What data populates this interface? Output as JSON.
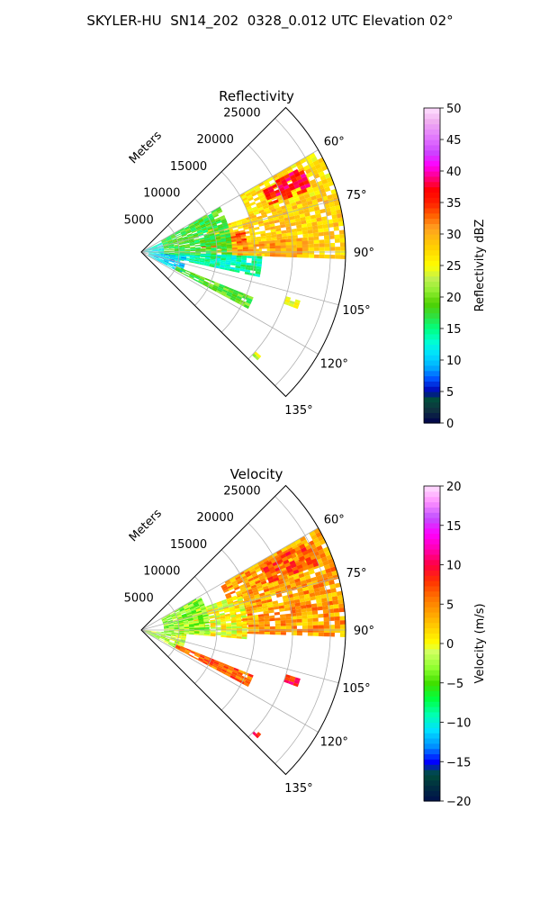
{
  "title": "SKYLER-HU  SN14_202  0328_0.012 UTC Elevation 02°",
  "chart_data": [
    {
      "type": "heatmap",
      "subtype": "radar-ppi-polar-sector",
      "title": "Reflectivity",
      "range_label": "Meters",
      "range_ticks": [
        "5000",
        "10000",
        "15000",
        "20000",
        "25000"
      ],
      "range_values": [
        5000,
        10000,
        15000,
        20000,
        25000
      ],
      "range_max": 27000,
      "azimuth_range": [
        45,
        135
      ],
      "azimuth_ticks": [
        "60°",
        "75°",
        "90°",
        "105°",
        "120°",
        "135°"
      ],
      "azimuth_values": [
        60,
        75,
        90,
        105,
        120,
        135
      ],
      "grid": true,
      "colorbar": {
        "label": "Reflectivity dBZ",
        "min": 0,
        "max": 50,
        "ticks": [
          "0",
          "5",
          "10",
          "15",
          "20",
          "25",
          "30",
          "35",
          "40",
          "45",
          "50"
        ],
        "tick_values": [
          0,
          5,
          10,
          15,
          20,
          25,
          30,
          35,
          40,
          45,
          50
        ]
      },
      "regions": [
        {
          "az": [
            72,
            92
          ],
          "r": [
            9000,
            27000
          ],
          "value": 28
        },
        {
          "az": [
            60,
            72
          ],
          "r": [
            15000,
            27000
          ],
          "value": 27
        },
        {
          "az": [
            62,
            70
          ],
          "r": [
            18000,
            24000
          ],
          "value": 37
        },
        {
          "az": [
            78,
            86
          ],
          "r": [
            8000,
            14000
          ],
          "value": 33
        },
        {
          "az": [
            85,
            92
          ],
          "r": [
            12000,
            22000
          ],
          "value": 30
        },
        {
          "az": [
            60,
            95
          ],
          "r": [
            3000,
            12000
          ],
          "value": 18
        },
        {
          "az": [
            92,
            102
          ],
          "r": [
            3000,
            16000
          ],
          "value": 14
        },
        {
          "az": [
            95,
            118
          ],
          "r": [
            1000,
            6000
          ],
          "value": 10
        },
        {
          "az": [
            65,
            95
          ],
          "r": [
            0,
            3000
          ],
          "value": 12
        },
        {
          "az": [
            112,
            118
          ],
          "r": [
            5000,
            16000
          ],
          "value": 19
        },
        {
          "az": [
            107,
            110
          ],
          "r": [
            20000,
            22000
          ],
          "value": 24
        },
        {
          "az": [
            131,
            133
          ],
          "r": [
            20000,
            21000
          ],
          "value": 23
        }
      ]
    },
    {
      "type": "heatmap",
      "subtype": "radar-ppi-polar-sector",
      "title": "Velocity",
      "range_label": "Meters",
      "range_ticks": [
        "5000",
        "10000",
        "15000",
        "20000",
        "25000"
      ],
      "range_values": [
        5000,
        10000,
        15000,
        20000,
        25000
      ],
      "range_max": 27000,
      "azimuth_range": [
        45,
        135
      ],
      "azimuth_ticks": [
        "60°",
        "75°",
        "90°",
        "105°",
        "120°",
        "135°"
      ],
      "azimuth_values": [
        60,
        75,
        90,
        105,
        120,
        135
      ],
      "grid": true,
      "colorbar": {
        "label": "Velocity (m/s)",
        "min": -20,
        "max": 20,
        "ticks": [
          "−20",
          "−15",
          "−10",
          "−5",
          "0",
          "5",
          "10",
          "15",
          "20"
        ],
        "tick_values": [
          -20,
          -15,
          -10,
          -5,
          0,
          5,
          10,
          15,
          20
        ]
      },
      "regions": [
        {
          "az": [
            60,
            92
          ],
          "r": [
            12000,
            27000
          ],
          "value": 4
        },
        {
          "az": [
            62,
            70
          ],
          "r": [
            18000,
            25000
          ],
          "value": 7
        },
        {
          "az": [
            70,
            95
          ],
          "r": [
            5000,
            14000
          ],
          "value": 0
        },
        {
          "az": [
            60,
            95
          ],
          "r": [
            3000,
            9000
          ],
          "value": -3
        },
        {
          "az": [
            95,
            118
          ],
          "r": [
            0,
            6000
          ],
          "value": -2
        },
        {
          "az": [
            112,
            118
          ],
          "r": [
            5000,
            16000
          ],
          "value": 6
        },
        {
          "az": [
            107,
            110
          ],
          "r": [
            20000,
            22000
          ],
          "value": 9
        },
        {
          "az": [
            131,
            133
          ],
          "r": [
            20000,
            21000
          ],
          "value": 9
        }
      ]
    }
  ]
}
